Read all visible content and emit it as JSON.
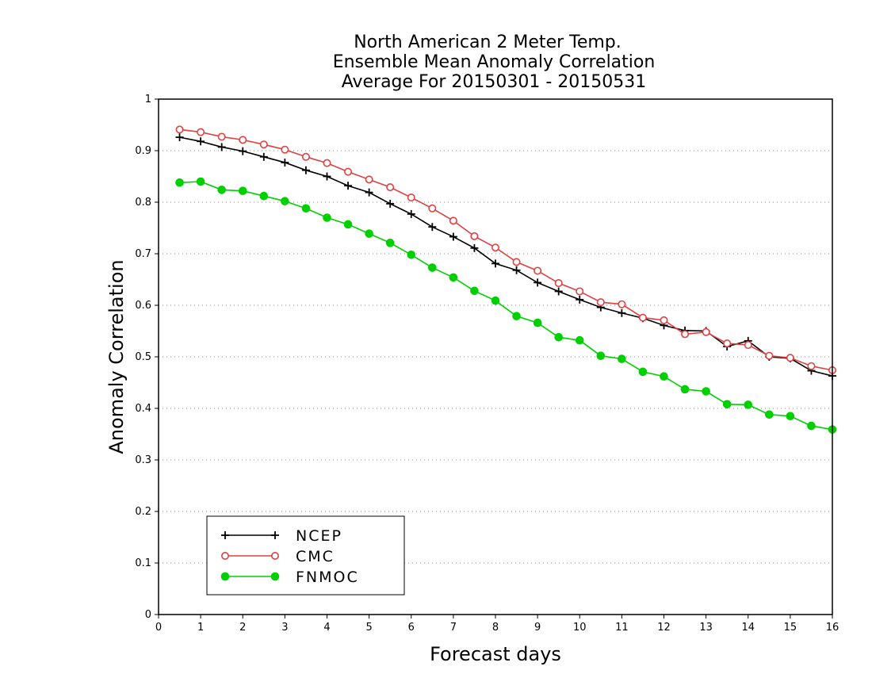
{
  "chart_data": {
    "type": "line",
    "title_lines": [
      "North American 2 Meter Temp.",
      "Ensemble Mean Anomaly Correlation",
      "Average For 20150301 - 20150531"
    ],
    "xlabel": "Forecast days",
    "ylabel": "Anomaly Correlation",
    "xlim": [
      0,
      16
    ],
    "ylim": [
      0,
      1
    ],
    "x_ticks": [
      "0",
      "1",
      "2",
      "3",
      "4",
      "5",
      "6",
      "7",
      "8",
      "9",
      "10",
      "11",
      "12",
      "13",
      "14",
      "15",
      "16"
    ],
    "y_ticks": [
      "0",
      "0.1",
      "0.2",
      "0.3",
      "0.4",
      "0.5",
      "0.6",
      "0.7",
      "0.8",
      "0.9",
      "1"
    ],
    "grid": "dotted horizontal",
    "legend_position": "bottom-left",
    "x": [
      0.5,
      1,
      1.5,
      2,
      2.5,
      3,
      3.5,
      4,
      4.5,
      5,
      5.5,
      6,
      6.5,
      7,
      7.5,
      8,
      8.5,
      9,
      9.5,
      10,
      10.5,
      11,
      11.5,
      12,
      12.5,
      13,
      13.5,
      14,
      14.5,
      15,
      15.5,
      16
    ],
    "series": [
      {
        "name": "NCEP",
        "color": "#000000",
        "marker": "plus",
        "values": [
          0.926,
          0.918,
          0.907,
          0.899,
          0.888,
          0.877,
          0.862,
          0.85,
          0.832,
          0.819,
          0.797,
          0.777,
          0.752,
          0.733,
          0.711,
          0.681,
          0.668,
          0.644,
          0.627,
          0.611,
          0.596,
          0.585,
          0.575,
          0.561,
          0.551,
          0.55,
          0.52,
          0.531,
          0.5,
          0.497,
          0.473,
          0.463
        ]
      },
      {
        "name": "CMC",
        "color": "#e04040",
        "marker": "open-circle",
        "values": [
          0.941,
          0.936,
          0.927,
          0.921,
          0.912,
          0.902,
          0.888,
          0.876,
          0.859,
          0.844,
          0.829,
          0.809,
          0.788,
          0.764,
          0.734,
          0.712,
          0.684,
          0.667,
          0.643,
          0.627,
          0.606,
          0.602,
          0.576,
          0.571,
          0.544,
          0.548,
          0.526,
          0.523,
          0.502,
          0.498,
          0.482,
          0.474
        ]
      },
      {
        "name": "FNMOC",
        "color": "#00d000",
        "marker": "filled-circle",
        "values": [
          0.838,
          0.84,
          0.824,
          0.822,
          0.812,
          0.802,
          0.788,
          0.77,
          0.757,
          0.739,
          0.721,
          0.698,
          0.673,
          0.654,
          0.628,
          0.609,
          0.579,
          0.566,
          0.538,
          0.532,
          0.502,
          0.496,
          0.471,
          0.462,
          0.437,
          0.433,
          0.408,
          0.407,
          0.388,
          0.385,
          0.366,
          0.359
        ]
      }
    ]
  }
}
